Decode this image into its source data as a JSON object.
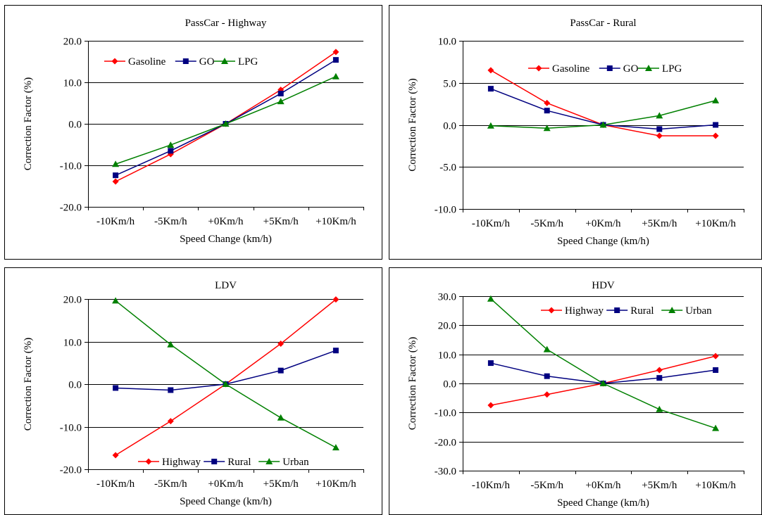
{
  "chart_data": [
    {
      "type": "line",
      "title": "PassCar - Highway",
      "xlabel": "Speed Change (km/h)",
      "ylabel": "Correction Factor (%)",
      "categories": [
        "-10Km/h",
        "-5Km/h",
        "+0Km/h",
        "+5Km/h",
        "+10Km/h"
      ],
      "ylim": [
        -20,
        20
      ],
      "yticks": [
        "-20.0",
        "-10.0",
        "0.0",
        "10.0",
        "20.0"
      ],
      "grid": true,
      "legend_position": "top",
      "series": [
        {
          "name": "Gasoline",
          "color": "#ff0000",
          "marker": "diamond",
          "values": [
            -13.9,
            -7.3,
            0.0,
            8.2,
            17.3
          ]
        },
        {
          "name": "GO",
          "color": "#000080",
          "marker": "square",
          "values": [
            -12.4,
            -6.5,
            0.0,
            7.3,
            15.4
          ]
        },
        {
          "name": "LPG",
          "color": "#008000",
          "marker": "triangle",
          "values": [
            -9.7,
            -5.1,
            0.0,
            5.4,
            11.4
          ]
        }
      ]
    },
    {
      "type": "line",
      "title": "PassCar - Rural",
      "xlabel": "Speed Change (km/h)",
      "ylabel": "Correction Factor (%)",
      "categories": [
        "-10Km/h",
        "-5Km/h",
        "+0Km/h",
        "+5Km/h",
        "+10Km/h"
      ],
      "ylim": [
        -10,
        10
      ],
      "yticks": [
        "-10.0",
        "-5.0",
        "0.0",
        "5.0",
        "10.0"
      ],
      "grid": true,
      "legend_position": "top",
      "series": [
        {
          "name": "Gasoline",
          "color": "#ff0000",
          "marker": "diamond",
          "values": [
            6.5,
            2.6,
            0.0,
            -1.3,
            -1.3
          ]
        },
        {
          "name": "GO",
          "color": "#000080",
          "marker": "square",
          "values": [
            4.3,
            1.7,
            0.0,
            -0.5,
            0.0
          ]
        },
        {
          "name": "LPG",
          "color": "#008000",
          "marker": "triangle",
          "values": [
            -0.1,
            -0.4,
            0.0,
            1.1,
            2.9
          ]
        }
      ]
    },
    {
      "type": "line",
      "title": "LDV",
      "xlabel": "Speed Change (km/h)",
      "ylabel": "Correction Factor (%)",
      "categories": [
        "-10Km/h",
        "-5Km/h",
        "+0Km/h",
        "+5Km/h",
        "+10Km/h"
      ],
      "ylim": [
        -20,
        20
      ],
      "yticks": [
        "-20.0",
        "-10.0",
        "0.0",
        "10.0",
        "20.0"
      ],
      "grid": true,
      "legend_position": "bottom",
      "series": [
        {
          "name": "Highway",
          "color": "#ff0000",
          "marker": "diamond",
          "values": [
            -16.7,
            -8.7,
            0.0,
            9.5,
            19.9
          ]
        },
        {
          "name": "Rural",
          "color": "#000080",
          "marker": "square",
          "values": [
            -0.9,
            -1.4,
            0.0,
            3.2,
            7.9
          ]
        },
        {
          "name": "Urban",
          "color": "#008000",
          "marker": "triangle",
          "values": [
            19.6,
            9.3,
            0.0,
            -7.9,
            -14.9
          ]
        }
      ]
    },
    {
      "type": "line",
      "title": "HDV",
      "xlabel": "Speed Change (km/h)",
      "ylabel": "Correction Factor (%)",
      "categories": [
        "-10Km/h",
        "-5Km/h",
        "+0Km/h",
        "+5Km/h",
        "+10Km/h"
      ],
      "ylim": [
        -30,
        30
      ],
      "yticks": [
        "-30.0",
        "-20.0",
        "-10.0",
        "0.0",
        "10.0",
        "20.0",
        "30.0"
      ],
      "grid": true,
      "legend_position": "top-right",
      "series": [
        {
          "name": "Highway",
          "color": "#ff0000",
          "marker": "diamond",
          "values": [
            -7.5,
            -3.8,
            0.0,
            4.6,
            9.4
          ]
        },
        {
          "name": "Rural",
          "color": "#000080",
          "marker": "square",
          "values": [
            7.0,
            2.5,
            0.0,
            1.9,
            4.6
          ]
        },
        {
          "name": "Urban",
          "color": "#008000",
          "marker": "triangle",
          "values": [
            29.1,
            11.7,
            0.0,
            -8.9,
            -15.4
          ]
        }
      ]
    }
  ]
}
